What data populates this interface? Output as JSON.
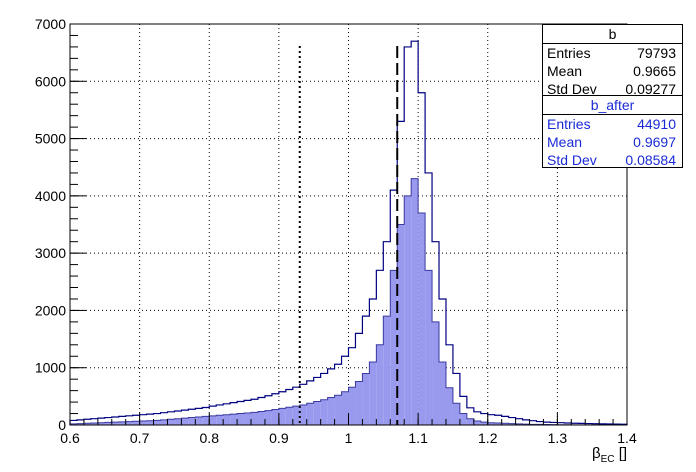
{
  "chart_data": {
    "type": "histogram",
    "xlabel_main": "β",
    "xlabel_sub": "EC",
    "xlabel_unit": " []",
    "xlim": [
      0.6,
      1.4
    ],
    "ylim": [
      0,
      7000
    ],
    "x_ticks": [
      "0.6",
      "0.7",
      "0.8",
      "0.9",
      "1",
      "1.1",
      "1.2",
      "1.3",
      "1.4"
    ],
    "y_ticks": [
      "0",
      "1000",
      "2000",
      "3000",
      "4000",
      "5000",
      "6000",
      "7000"
    ],
    "grid": true,
    "bin_width": 0.01,
    "bin_start": 0.6,
    "cut_lines": [
      {
        "x": 0.93,
        "style": "dotted"
      },
      {
        "x": 1.07,
        "style": "dashed"
      }
    ],
    "series": [
      {
        "name": "b",
        "style": "outline",
        "color": "#000080",
        "values": [
          80,
          90,
          100,
          110,
          120,
          130,
          140,
          150,
          160,
          170,
          180,
          190,
          200,
          215,
          230,
          245,
          260,
          275,
          290,
          305,
          330,
          350,
          370,
          390,
          410,
          430,
          450,
          480,
          510,
          545,
          580,
          620,
          660,
          710,
          770,
          830,
          900,
          980,
          1060,
          1200,
          1350,
          1600,
          1900,
          2200,
          2700,
          3200,
          4100,
          5300,
          6600,
          6700,
          5800,
          4400,
          3200,
          2200,
          1400,
          900,
          500,
          300,
          230,
          200,
          180,
          170,
          150,
          130,
          110,
          90,
          75,
          60,
          50,
          45,
          40,
          35,
          30,
          28,
          25,
          22,
          20,
          18,
          16,
          14
        ]
      },
      {
        "name": "b_after",
        "style": "filled",
        "color": "#9999ee",
        "values": [
          20,
          25,
          30,
          35,
          40,
          45,
          50,
          55,
          60,
          65,
          70,
          75,
          80,
          90,
          100,
          110,
          120,
          130,
          140,
          150,
          160,
          170,
          180,
          190,
          200,
          210,
          220,
          235,
          250,
          270,
          290,
          310,
          330,
          350,
          380,
          410,
          440,
          480,
          520,
          580,
          660,
          760,
          900,
          1100,
          1400,
          1900,
          2700,
          3500,
          4000,
          4300,
          3700,
          2700,
          1800,
          1100,
          650,
          380,
          200,
          110,
          70,
          50,
          40,
          35,
          30,
          25,
          20,
          15,
          12,
          10,
          8,
          6,
          5,
          4,
          3,
          2,
          2,
          1,
          1,
          1,
          1,
          1
        ]
      }
    ],
    "stats": [
      {
        "title": "b",
        "entries_label": "Entries",
        "entries": "79793",
        "mean_label": "Mean",
        "mean": "0.9665",
        "std_label": "Std Dev",
        "std": "0.09277"
      },
      {
        "title": "b_after",
        "entries_label": "Entries",
        "entries": "44910",
        "mean_label": "Mean",
        "mean": "0.9697",
        "std_label": "Std Dev",
        "std": "0.08584"
      }
    ]
  }
}
